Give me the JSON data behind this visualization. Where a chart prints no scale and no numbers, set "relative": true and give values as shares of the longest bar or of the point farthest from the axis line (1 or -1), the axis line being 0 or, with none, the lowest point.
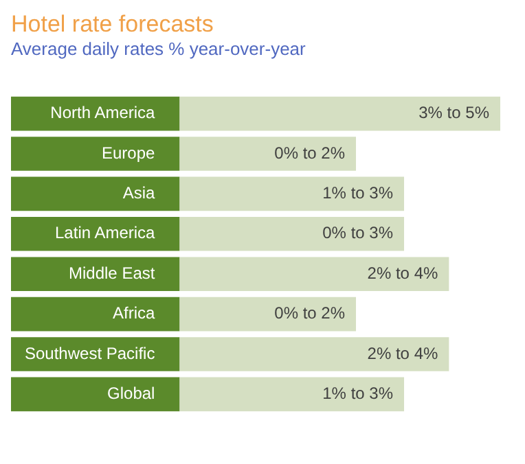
{
  "chart_data": {
    "type": "bar",
    "orientation": "horizontal",
    "relative": true,
    "title": "Hotel rate forecasts",
    "subtitle": "Average daily rates % year-over-year",
    "categories": [
      "North America",
      "Europe",
      "Asia",
      "Latin America",
      "Middle East",
      "Africa",
      "Southwest Pacific",
      "Global"
    ],
    "values": [
      1,
      0.55,
      0.7,
      0.7,
      0.84,
      0.55,
      0.84,
      0.7
    ],
    "annotations": [
      "3% to 5%",
      "0% to 2%",
      "1% to 3%",
      "0% to 3%",
      "2% to 4%",
      "0% to 2%",
      "2% to 4%",
      "1% to 3%"
    ],
    "color": "#d5dfc2",
    "tick_labels": "y",
    "legend": false
  }
}
